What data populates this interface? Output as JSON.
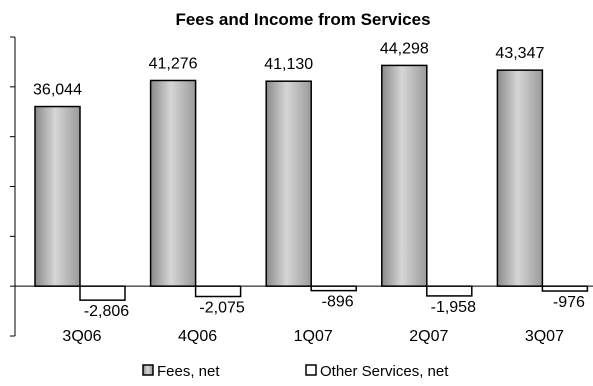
{
  "chart_data": {
    "type": "bar",
    "title": "Fees and Income from Services",
    "categories": [
      "3Q06",
      "4Q06",
      "1Q07",
      "2Q07",
      "3Q07"
    ],
    "series": [
      {
        "name": "Fees, net",
        "values": [
          36044,
          41276,
          41130,
          44298,
          43347
        ],
        "labels": [
          "36,044",
          "41,276",
          "41,130",
          "44,298",
          "43,347"
        ],
        "color": "#b5b5b5"
      },
      {
        "name": "Other Services, net",
        "values": [
          -2806,
          -2075,
          -896,
          -1958,
          -976
        ],
        "labels": [
          "-2,806",
          "-2,075",
          "-896",
          "-1,958",
          "-976"
        ],
        "color": "#ffffff"
      }
    ],
    "ylim": [
      -10000,
      50000
    ],
    "grid": false,
    "legend_position": "bottom"
  }
}
